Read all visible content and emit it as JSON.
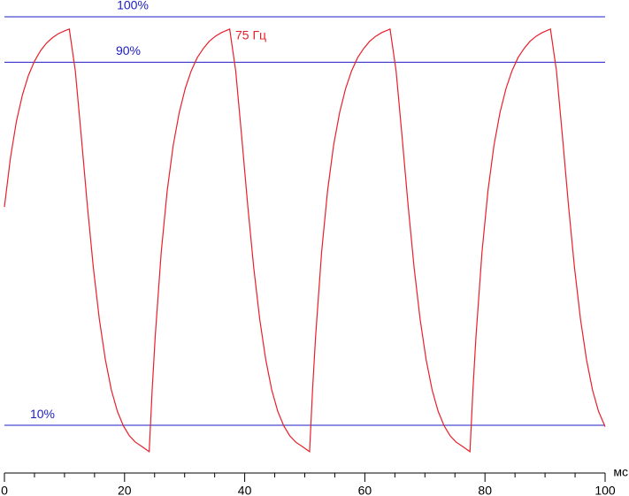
{
  "chart_data": {
    "type": "line",
    "xlabel": "мс",
    "xlim": [
      0,
      100
    ],
    "xticks": [
      0,
      20,
      40,
      60,
      80,
      100
    ],
    "minor_xticks": [
      5,
      10,
      15,
      25,
      30,
      35,
      45,
      50,
      55,
      65,
      70,
      75,
      85,
      90,
      95
    ],
    "ylim": [
      0,
      100
    ],
    "reference_lines": [
      {
        "value": 100,
        "label": "100%"
      },
      {
        "value": 90,
        "label": "90%"
      },
      {
        "value": 10,
        "label": "10%"
      }
    ],
    "reference_color": "#1c1cc4",
    "x": [
      0,
      1,
      2,
      3,
      4,
      5,
      6,
      7,
      8,
      9,
      10,
      10.8,
      11.8,
      12.8,
      13.8,
      14.8,
      15.8,
      16.8,
      17.8,
      18.8,
      19.8,
      20.8,
      21.8,
      22.8,
      24.1,
      24.6,
      25.1,
      26.1,
      27.1,
      28.1,
      29.1,
      30.1,
      31.1,
      32.1,
      33.1,
      34.1,
      35.1,
      36.1,
      37.5,
      38.5,
      39.5,
      40.5,
      41.5,
      42.5,
      43.5,
      44.5,
      45.5,
      46.5,
      47.5,
      48.5,
      49.5,
      50.8,
      51.3,
      51.8,
      52.8,
      53.8,
      54.8,
      55.8,
      56.8,
      57.8,
      58.8,
      59.8,
      60.8,
      61.8,
      62.8,
      64.2,
      65.2,
      66.2,
      67.2,
      68.2,
      69.2,
      70.2,
      71.2,
      72.2,
      73.2,
      74.2,
      75.2,
      76.2,
      77.5,
      78,
      78.5,
      79.5,
      80.5,
      81.5,
      82.5,
      83.5,
      84.5,
      85.5,
      86.5,
      87.5,
      88.5,
      89.5,
      90.9,
      91.9,
      92.9,
      93.9,
      94.9,
      95.9,
      96.9,
      97.9,
      98.9,
      100
    ],
    "series": [
      {
        "name": "75 Гц",
        "color": "#e8202a",
        "values": [
          58.1,
          68.9,
          77.0,
          82.8,
          87.1,
          90.2,
          92.5,
          94.2,
          95.4,
          96.3,
          96.9,
          97.3,
          88.1,
          73.6,
          58.5,
          44.8,
          33.4,
          24.5,
          17.8,
          13.1,
          9.9,
          7.7,
          6.3,
          5.4,
          4.2,
          17.9,
          29.5,
          48.1,
          61.7,
          71.7,
          78.9,
          84.2,
          88.1,
          91.0,
          93.0,
          94.6,
          95.7,
          96.5,
          97.3,
          88.1,
          73.6,
          58.5,
          44.8,
          33.4,
          24.5,
          17.8,
          13.1,
          9.9,
          7.7,
          6.3,
          5.4,
          4.2,
          17.9,
          29.5,
          48.1,
          61.7,
          71.7,
          78.9,
          84.2,
          88.1,
          91.0,
          93.0,
          94.6,
          95.7,
          96.5,
          97.3,
          88.1,
          73.6,
          58.5,
          44.8,
          33.4,
          24.5,
          17.8,
          13.1,
          9.9,
          7.7,
          6.3,
          5.4,
          4.2,
          17.9,
          29.5,
          48.1,
          61.7,
          71.7,
          78.9,
          84.2,
          88.1,
          91.0,
          93.0,
          94.6,
          95.7,
          96.5,
          97.3,
          88.1,
          73.6,
          58.5,
          44.8,
          33.4,
          24.5,
          17.8,
          13.1,
          9.7
        ]
      }
    ]
  }
}
